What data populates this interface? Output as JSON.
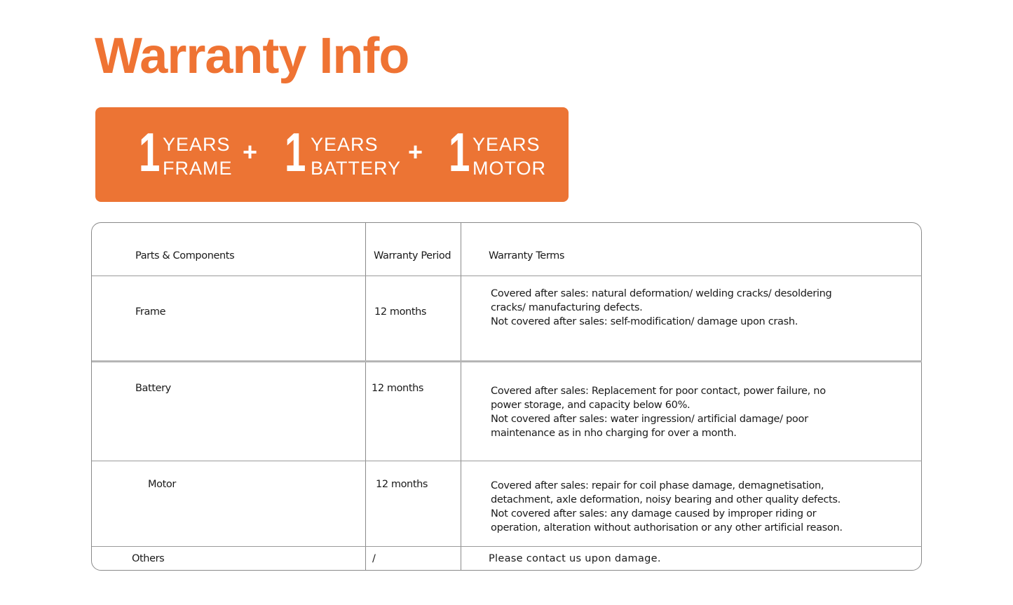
{
  "title": "Warranty Info",
  "colors": {
    "accent": "#ec7434",
    "title": "#ef7333"
  },
  "banner": {
    "items": [
      {
        "number": "1",
        "line1": "YEARS",
        "line2": "FRAME"
      },
      {
        "number": "1",
        "line1": "YEARS",
        "line2": "BATTERY"
      },
      {
        "number": "1",
        "line1": "YEARS",
        "line2": "MOTOR"
      }
    ],
    "separator": "+"
  },
  "table": {
    "headers": [
      "Parts & Components",
      "Warranty Period",
      "Warranty Terms"
    ],
    "rows": [
      {
        "part": "Frame",
        "period": "12 months",
        "terms": [
          "Covered after sales: natural deformation/ welding cracks/ desoldering",
          "cracks/ manufacturing defects.",
          "Not covered after sales: self-modification/ damage upon crash."
        ]
      },
      {
        "part": "Battery",
        "period": "12 months",
        "terms": [
          "Covered after sales: Replacement for poor contact, power failure, no",
          "power storage, and capacity below 60%.",
          "Not covered after sales: water ingression/ artificial damage/ poor",
          "maintenance as in nho charging for over a month."
        ]
      },
      {
        "part": "Motor",
        "period": "12 months",
        "terms": [
          "Covered after sales:  repair for coil phase damage, demagnetisation,",
          "detachment, axle deformation, noisy bearing and other quality defects.",
          "Not covered after sales: any damage caused by improper riding or",
          "operation, alteration without authorisation or any other artificial reason."
        ]
      },
      {
        "part": "Others",
        "period": "/",
        "terms": [
          "Please contact us upon damage."
        ]
      }
    ]
  }
}
